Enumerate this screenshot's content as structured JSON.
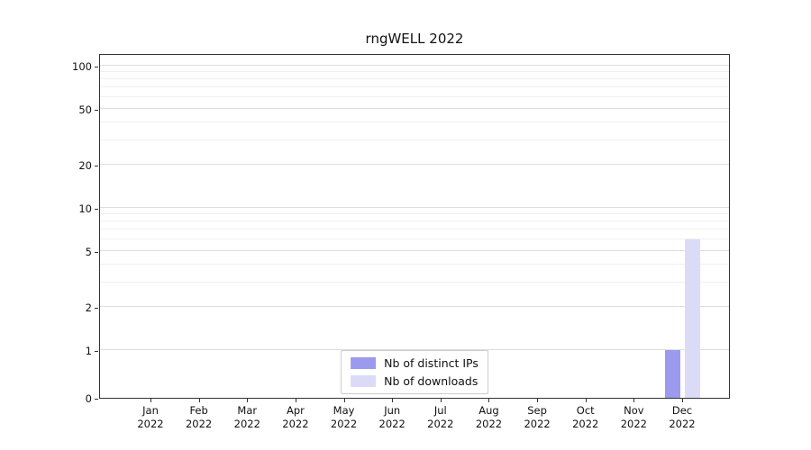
{
  "chart_data": {
    "type": "bar",
    "title": "rngWELL 2022",
    "categories": [
      "Jan",
      "Feb",
      "Mar",
      "Apr",
      "May",
      "Jun",
      "Jul",
      "Aug",
      "Sep",
      "Oct",
      "Nov",
      "Dec"
    ],
    "year": "2022",
    "series": [
      {
        "name": "Nb of distinct IPs",
        "color": "#9b9aee",
        "values": [
          0,
          0,
          0,
          0,
          0,
          0,
          0,
          0,
          0,
          0,
          0,
          1
        ]
      },
      {
        "name": "Nb of downloads",
        "color": "#dbdbf8",
        "values": [
          0,
          0,
          0,
          0,
          0,
          0,
          0,
          0,
          0,
          0,
          0,
          6
        ]
      }
    ],
    "yscale": "symlog",
    "ylim": [
      0,
      100
    ],
    "yticks": [
      0,
      1,
      2,
      5,
      10,
      20,
      50,
      100
    ],
    "minor_yticks": [
      3,
      4,
      6,
      7,
      8,
      9,
      30,
      40,
      60,
      70,
      80,
      90
    ],
    "grid": true,
    "legend_position": "lower center"
  }
}
